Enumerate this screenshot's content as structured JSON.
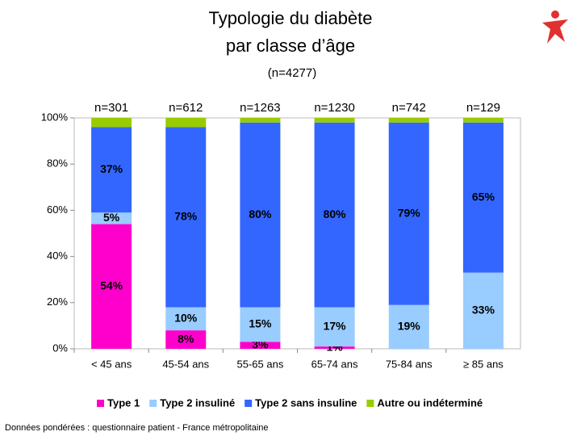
{
  "chart_data": {
    "type": "stacked_bar",
    "title": [
      "Typologie du diabète",
      "par classe d’âge"
    ],
    "subtitle": "(n=4277)",
    "categories": [
      "< 45 ans",
      "45-54 ans",
      "55-65 ans",
      "65-74 ans",
      "75-84 ans",
      "≥ 85 ans"
    ],
    "n_labels": [
      "n=301",
      "n=612",
      "n=1263",
      "n=1230",
      "n=742",
      "n=129"
    ],
    "series": [
      {
        "name": "Type 1",
        "color": "#ff00cc",
        "values": [
          54,
          8,
          3,
          1,
          0,
          0
        ],
        "value_labels": [
          "54%",
          "8%",
          "3%",
          "1%",
          null,
          null
        ]
      },
      {
        "name": "Type 2 insuliné",
        "color": "#99ccff",
        "values": [
          5,
          10,
          15,
          17,
          19,
          33
        ],
        "value_labels": [
          "5%",
          "10%",
          "15%",
          "17%",
          "19%",
          "33%"
        ]
      },
      {
        "name": "Type 2 sans insuline",
        "color": "#3366ff",
        "values": [
          37,
          78,
          80,
          80,
          79,
          65
        ],
        "value_labels": [
          "37%",
          "78%",
          "80%",
          "80%",
          "79%",
          "65%"
        ]
      },
      {
        "name": "Autre ou indéterminé",
        "color": "#99cc00",
        "values": [
          4,
          4,
          2,
          2,
          2,
          2
        ],
        "value_labels": [
          null,
          null,
          null,
          null,
          null,
          null
        ]
      }
    ],
    "ylim": [
      0,
      100
    ],
    "yticks": [
      {
        "value": 0,
        "label": "0%"
      },
      {
        "value": 20,
        "label": "20%"
      },
      {
        "value": 40,
        "label": "40%"
      },
      {
        "value": 60,
        "label": "60%"
      },
      {
        "value": 80,
        "label": "80%"
      },
      {
        "value": 100,
        "label": "100%"
      }
    ],
    "legend_position": "bottom",
    "footnote": "Données pondérées : questionnaire patient - France métropolitaine"
  }
}
